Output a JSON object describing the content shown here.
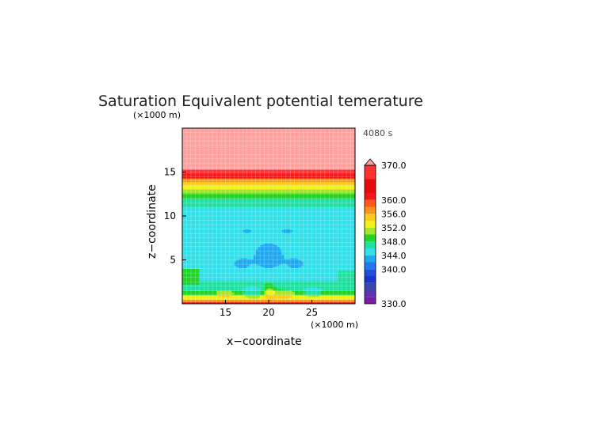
{
  "chart_data": {
    "type": "heatmap",
    "title": "Saturation Equivalent potential temerature",
    "time_label": "4080 s",
    "xlabel": "x−coordinate",
    "ylabel": "z−coordinate",
    "x_unit": "(×1000 m)",
    "y_unit": "(×1000 m)",
    "x_ticks": [
      "15",
      "20",
      "25"
    ],
    "y_ticks": [
      "5",
      "10",
      "15"
    ],
    "xlim": [
      10,
      30
    ],
    "ylim": [
      0,
      20
    ],
    "grid": true,
    "colorbar": {
      "min": 330,
      "max": 370,
      "extend": "max",
      "tick_labels": [
        "370.0",
        "360.0",
        "356.0",
        "352.0",
        "348.0",
        "344.0",
        "340.0",
        "330.0"
      ],
      "tick_values": [
        370,
        360,
        356,
        352,
        348,
        344,
        340,
        330
      ],
      "levels": [
        {
          "from": 330,
          "to": 332,
          "color": "#7b1fa2"
        },
        {
          "from": 332,
          "to": 334,
          "color": "#5e35b1"
        },
        {
          "from": 334,
          "to": 336,
          "color": "#3949ab"
        },
        {
          "from": 336,
          "to": 338,
          "color": "#1a35c9"
        },
        {
          "from": 338,
          "to": 340,
          "color": "#1e4fe0"
        },
        {
          "from": 340,
          "to": 342,
          "color": "#1e78ee"
        },
        {
          "from": 342,
          "to": 344,
          "color": "#1ea8f2"
        },
        {
          "from": 344,
          "to": 346,
          "color": "#33e0ea"
        },
        {
          "from": 346,
          "to": 348,
          "color": "#1ee0a0"
        },
        {
          "from": 348,
          "to": 350,
          "color": "#22d428"
        },
        {
          "from": 350,
          "to": 352,
          "color": "#a6e62a"
        },
        {
          "from": 352,
          "to": 354,
          "color": "#f1f018"
        },
        {
          "from": 354,
          "to": 356,
          "color": "#ffcb1a"
        },
        {
          "from": 356,
          "to": 358,
          "color": "#ff9218"
        },
        {
          "from": 358,
          "to": 360,
          "color": "#ff5a14"
        },
        {
          "from": 360,
          "to": 362,
          "color": "#f21616"
        },
        {
          "from": 362,
          "to": 366,
          "color": "#e80a0a"
        },
        {
          "from": 366,
          "to": 370,
          "color": "#ff3030"
        },
        {
          "from": 370,
          "to": 380,
          "color": "#ffa0a0"
        }
      ]
    }
  }
}
